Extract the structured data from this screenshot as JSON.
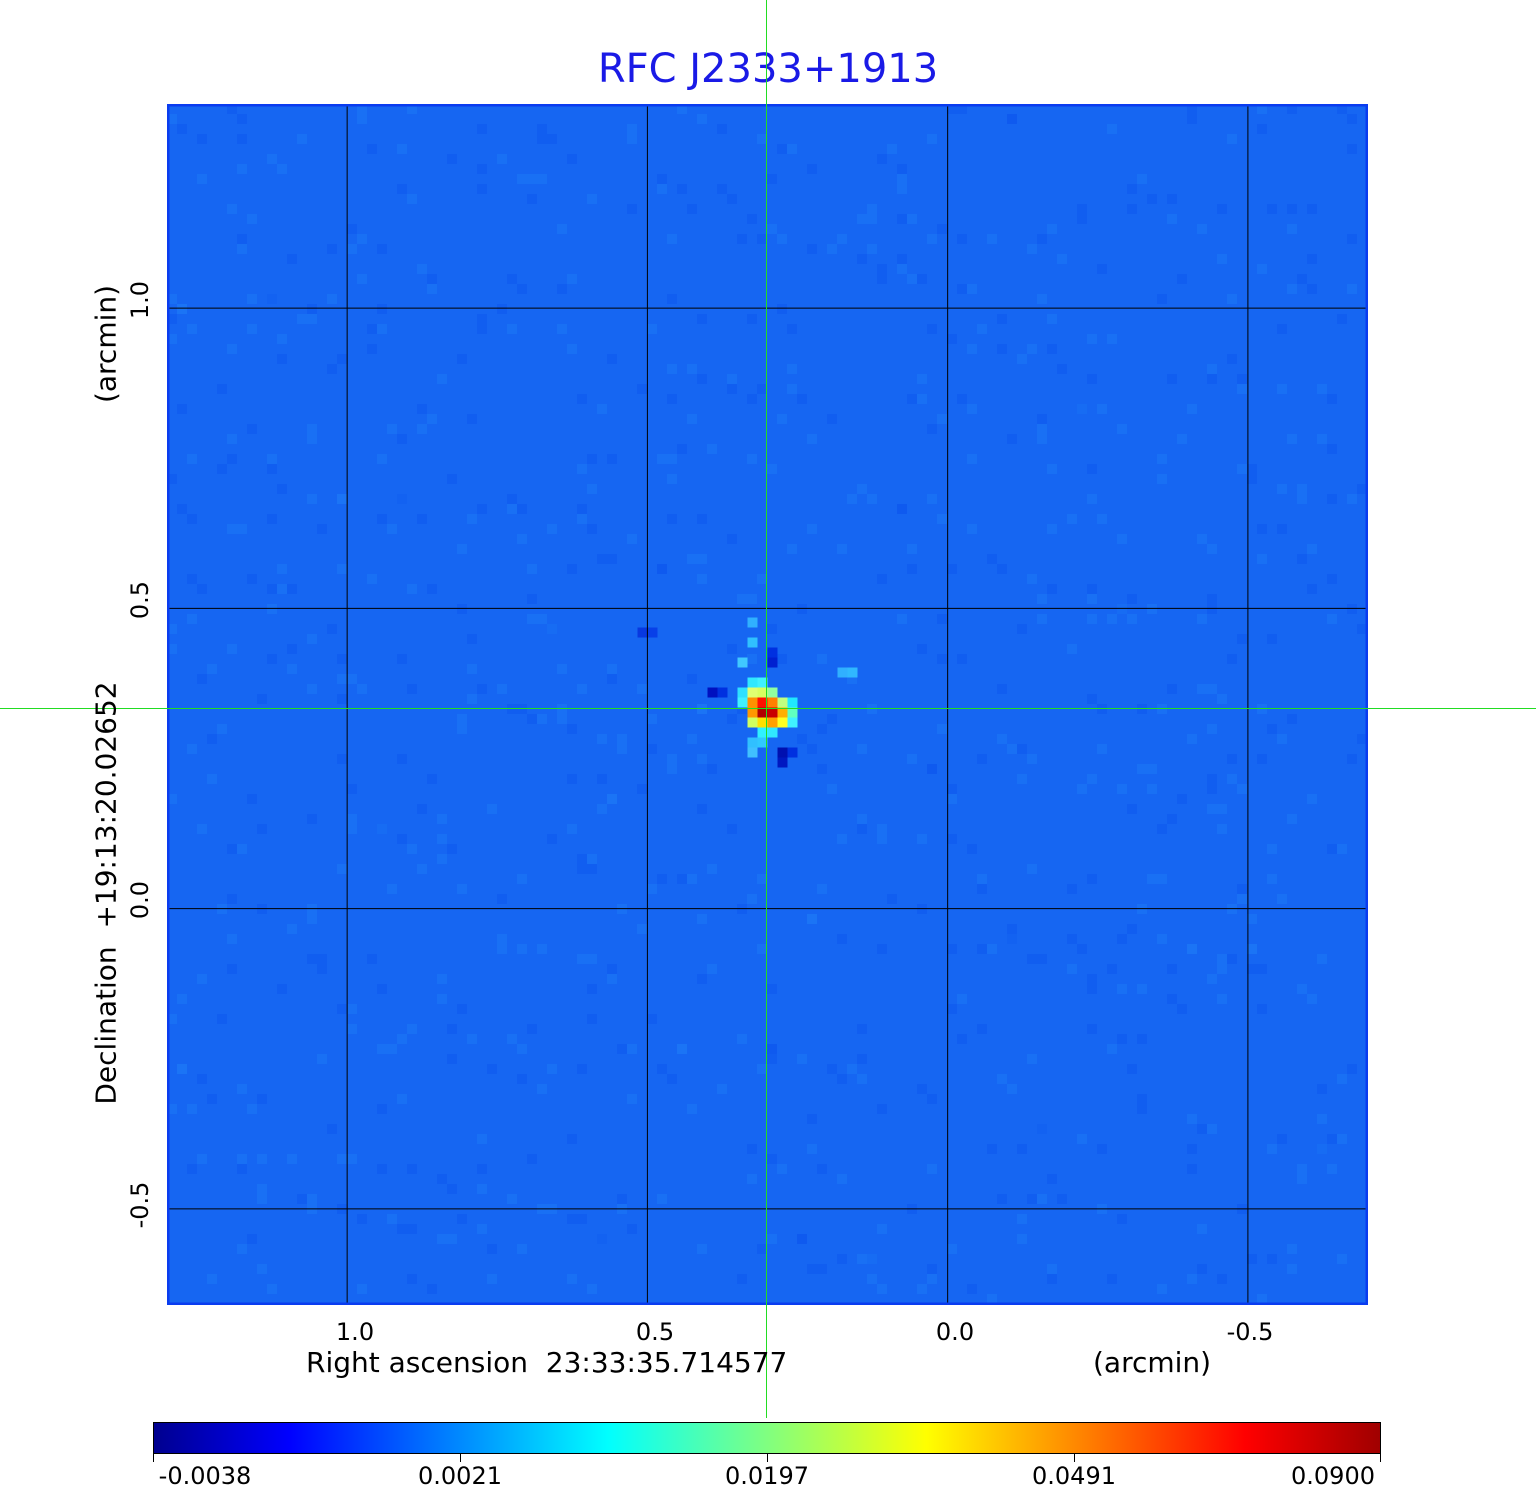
{
  "chart_data": {
    "type": "heatmap",
    "title": "RFC J2333+1913",
    "xlabel": "Right ascension  23:33:35.714577",
    "xunit": "(arcmin)",
    "ylabel": "Declination  +19:13:20.02652",
    "yunit": "(arcmin)",
    "xlim": [
      1.3,
      -0.7
    ],
    "ylim": [
      -0.66,
      1.34
    ],
    "x_ticks": [
      "1.0",
      "0.5",
      "0.0",
      "-0.5"
    ],
    "x_tick_values": [
      1.0,
      0.5,
      0.0,
      -0.5
    ],
    "y_ticks": [
      "1.0",
      "0.5",
      "0.0",
      "-0.5"
    ],
    "y_tick_values": [
      1.0,
      0.5,
      0.0,
      -0.5
    ],
    "grid": true,
    "colormap": "jet",
    "colorbar_ticks": [
      "-0.0038",
      "0.0021",
      "0.0197",
      "0.0491",
      "0.0900"
    ],
    "colorbar_range": [
      -0.0038,
      0.09
    ],
    "peak": {
      "x": 0.3,
      "y": 0.335,
      "value": 0.09
    },
    "crosshair": {
      "x": 0.3,
      "y": 0.335,
      "color": "#22dd22"
    },
    "background_color": "#1666f2",
    "title_color": "#1a1ae6"
  }
}
